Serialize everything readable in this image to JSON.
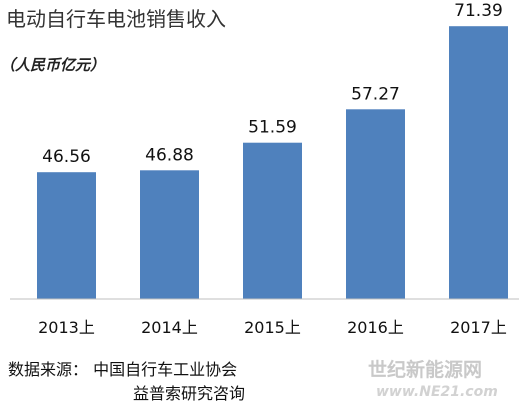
{
  "chart_data": {
    "type": "bar",
    "title": "电动自行车电池销售收入",
    "subtitle": "（人民币亿元）",
    "categories": [
      "2013上",
      "2014上",
      "2015上",
      "2016上",
      "2017上"
    ],
    "values": [
      46.56,
      46.88,
      51.59,
      57.27,
      71.39
    ],
    "value_labels": [
      "46.56",
      "46.88",
      "51.59",
      "57.27",
      "71.39"
    ],
    "ylim": [
      25,
      75
    ],
    "grid": false,
    "bar_color": "#4f81bd"
  },
  "source": {
    "line1": "数据来源：  中国自行车工业协会",
    "line2": "益普索研究咨询"
  },
  "watermark": {
    "brand": "世纪新能源网",
    "url": "www.NE21.com"
  }
}
